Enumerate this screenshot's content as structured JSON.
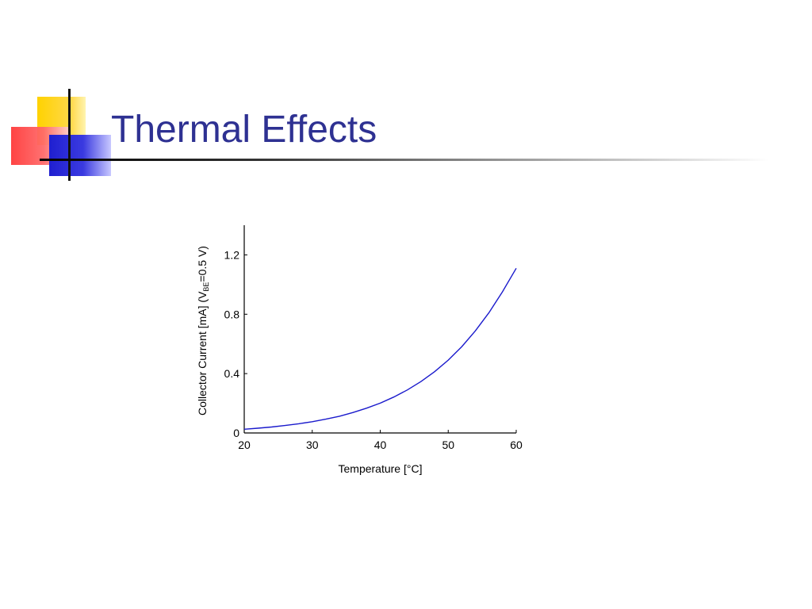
{
  "slide": {
    "title": "Thermal Effects"
  },
  "chart_data": {
    "type": "line",
    "title": "",
    "xlabel": "Temperature [°C]",
    "ylabel": {
      "prefix": "Collector Current [mA] (V",
      "subscript": "BE",
      "suffix": "=0.5 V)"
    },
    "xlim": [
      20,
      60
    ],
    "ylim": [
      0,
      1.4
    ],
    "xticks": [
      20,
      30,
      40,
      50,
      60
    ],
    "xtick_labels": [
      "20",
      "30",
      "40",
      "50",
      "60"
    ],
    "yticks": [
      0,
      0.4,
      0.8,
      1.2
    ],
    "ytick_labels": [
      "0",
      "0.4",
      "0.8",
      "1.2"
    ],
    "grid": false,
    "line_color": "#1a1acc",
    "series": [
      {
        "x": [
          20,
          22,
          24,
          26,
          28,
          30,
          32,
          34,
          36,
          38,
          40,
          42,
          44,
          46,
          48,
          50,
          52,
          54,
          56,
          58,
          60
        ],
        "y": [
          0.025,
          0.032,
          0.04,
          0.05,
          0.062,
          0.076,
          0.093,
          0.113,
          0.138,
          0.167,
          0.201,
          0.242,
          0.29,
          0.347,
          0.413,
          0.491,
          0.582,
          0.688,
          0.811,
          0.953,
          1.11
        ]
      }
    ]
  }
}
